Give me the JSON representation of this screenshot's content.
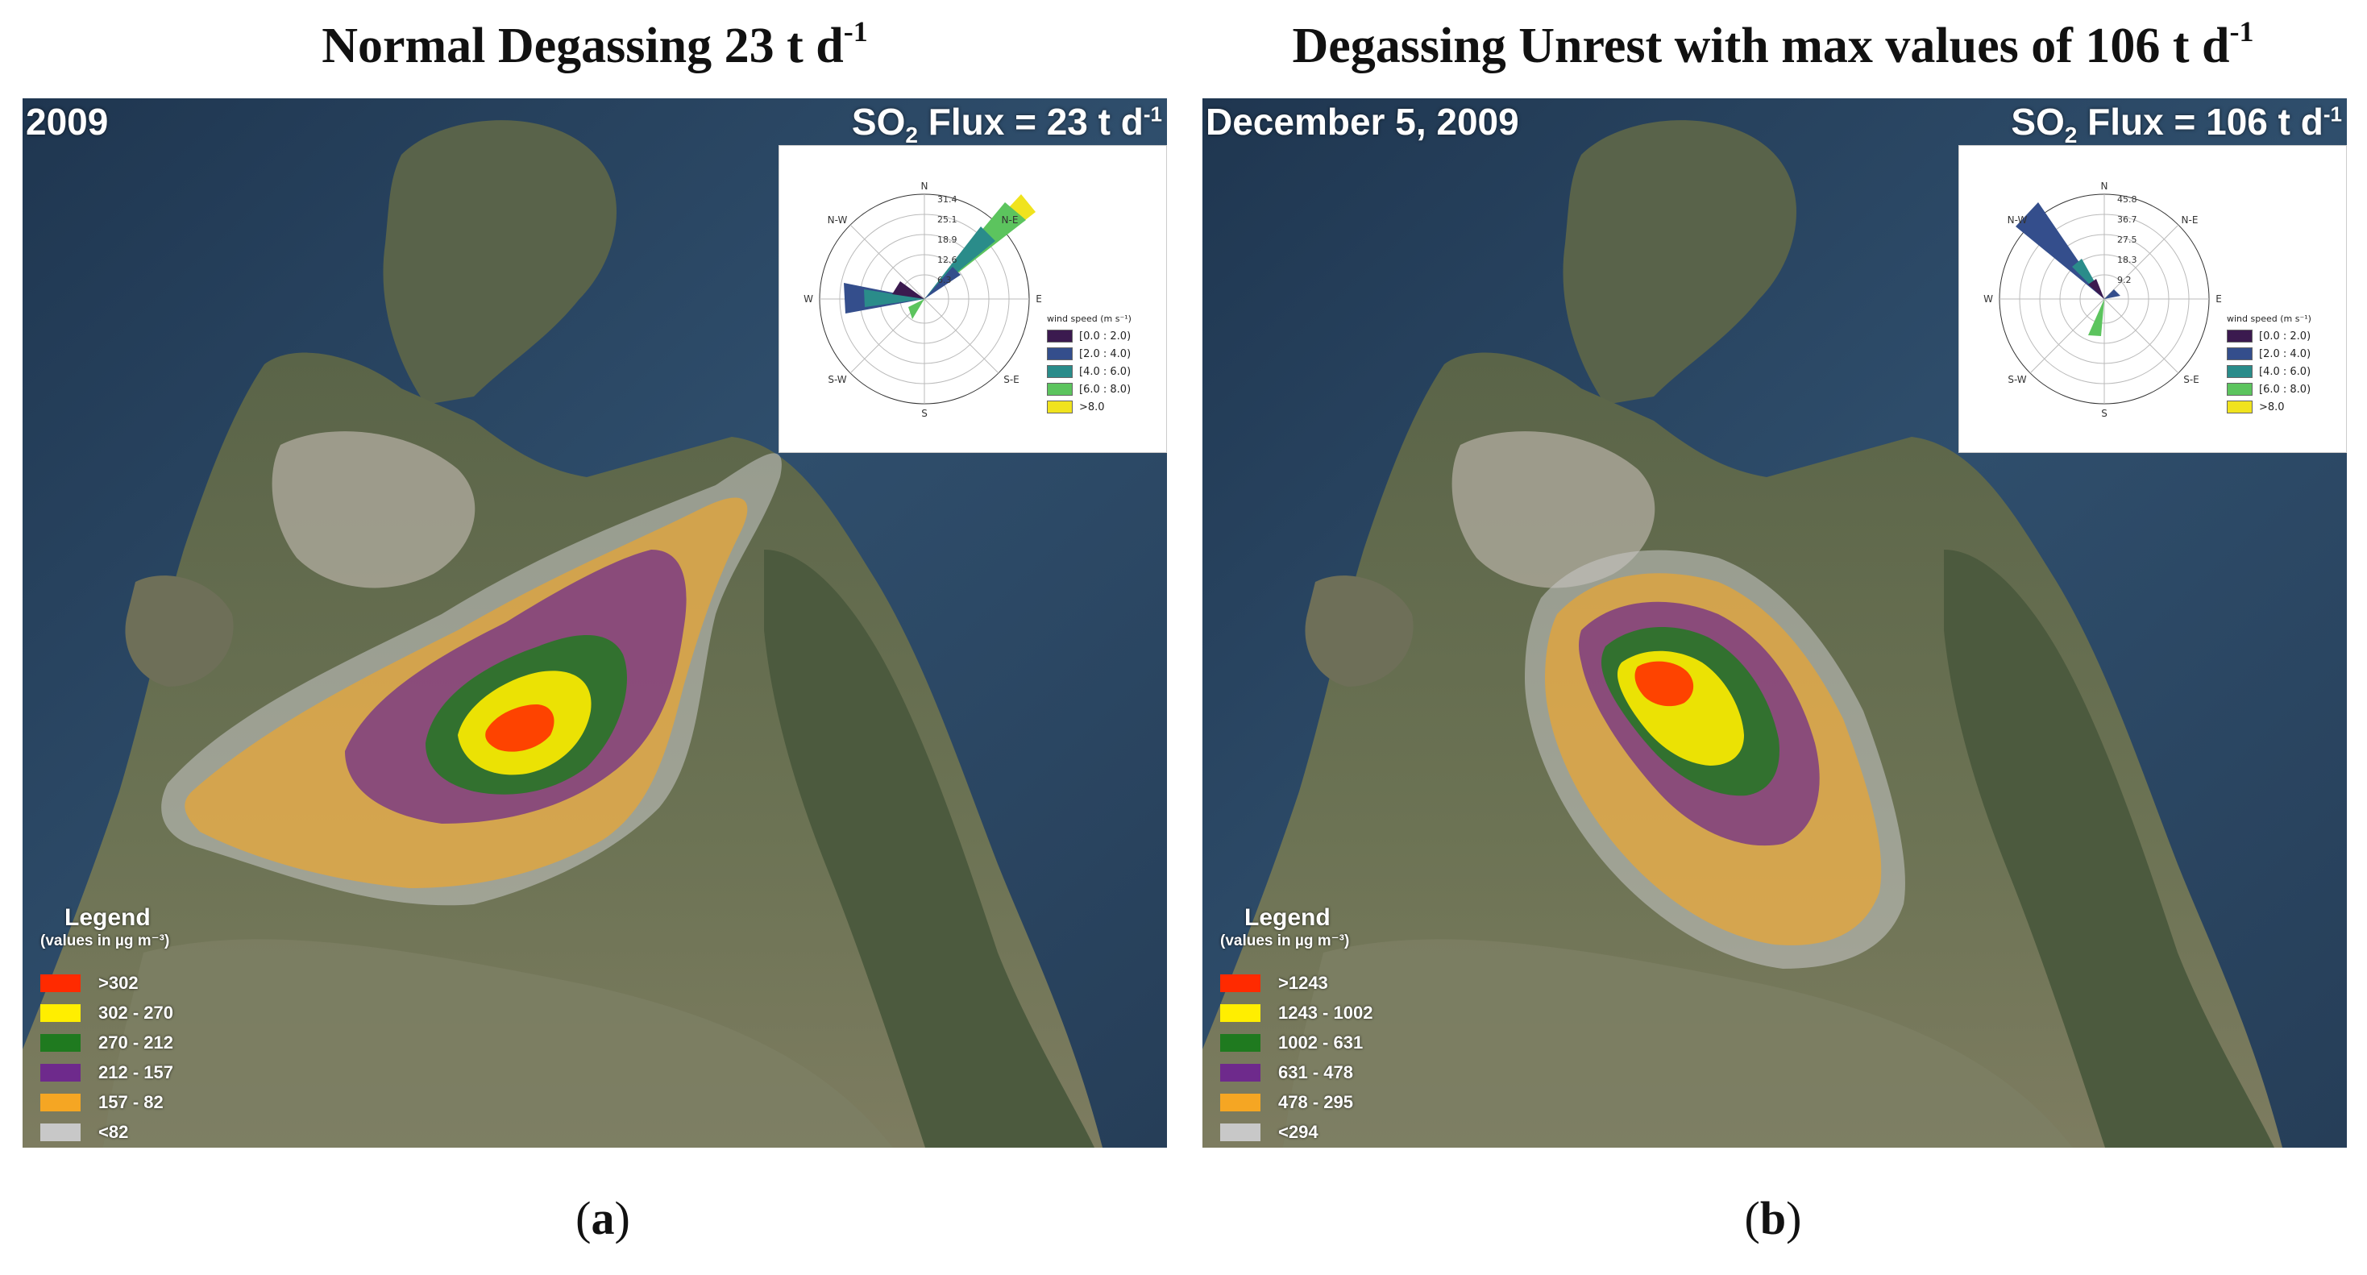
{
  "panels": [
    {
      "id": "a",
      "heading": "Normal Degassing 23 t d",
      "heading_sup": "-1",
      "date": "2009",
      "flux_prefix": "SO",
      "flux_sub": "2",
      "flux_value": " Flux = 23 t d",
      "flux_sup": "-1",
      "windrose": {
        "directions": [
          "N",
          "N-E",
          "E",
          "S-E",
          "S",
          "S-W",
          "W",
          "N-W"
        ],
        "radial_ticks": [
          "31.4",
          "25.1",
          "18.9",
          "12.6",
          "6.3"
        ],
        "legend_title": "wind speed (m s⁻¹)",
        "classes": [
          "[0.0 : 2.0)",
          "[2.0 : 4.0)",
          "[4.0 : 6.0)",
          "[6.0 : 8.0)",
          ">8.0"
        ]
      },
      "legend": {
        "title": "Legend",
        "subtitle": "(values in µg m⁻³)",
        "classes": [
          ">302",
          "302 - 270",
          "270 - 212",
          "212 - 157",
          "157 - 82",
          "<82"
        ]
      },
      "caption_open": "(",
      "caption_letter": "a",
      "caption_close": ")"
    },
    {
      "id": "b",
      "heading": "Degassing Unrest with max values of 106 t d",
      "heading_sup": "-1",
      "date": "December 5, 2009",
      "flux_prefix": "SO",
      "flux_sub": "2",
      "flux_value": " Flux = 106 t d",
      "flux_sup": "-1",
      "windrose": {
        "directions": [
          "N",
          "N-E",
          "E",
          "S-E",
          "S",
          "S-W",
          "W",
          "N-W"
        ],
        "radial_ticks": [
          "45.8",
          "36.7",
          "27.5",
          "18.3",
          "9.2"
        ],
        "legend_title": "wind speed (m s⁻¹)",
        "classes": [
          "[0.0 : 2.0)",
          "[2.0 : 4.0)",
          "[4.0 : 6.0)",
          "[6.0 : 8.0)",
          ">8.0"
        ]
      },
      "legend": {
        "title": "Legend",
        "subtitle": "(values in µg m⁻³)",
        "classes": [
          ">1243",
          "1243 - 1002",
          "1002 - 631",
          "631 - 478",
          "478 - 295",
          "<294"
        ]
      },
      "caption_open": "(",
      "caption_letter": "b",
      "caption_close": ")"
    }
  ],
  "colors": {
    "sea": "#2c4660",
    "land": "#5f6b4c",
    "land_light": "#8c8a6c",
    "town": "#b6b2a6",
    "concentration_classes": [
      "#ff2a00",
      "#ffee00",
      "#1f7a1f",
      "#6e2a8c",
      "#f5a623",
      "#c8c8c8"
    ],
    "wind_classes": [
      "#3b1a4f",
      "#344e8c",
      "#2a8c8a",
      "#5cc45e",
      "#f0e31e"
    ]
  }
}
